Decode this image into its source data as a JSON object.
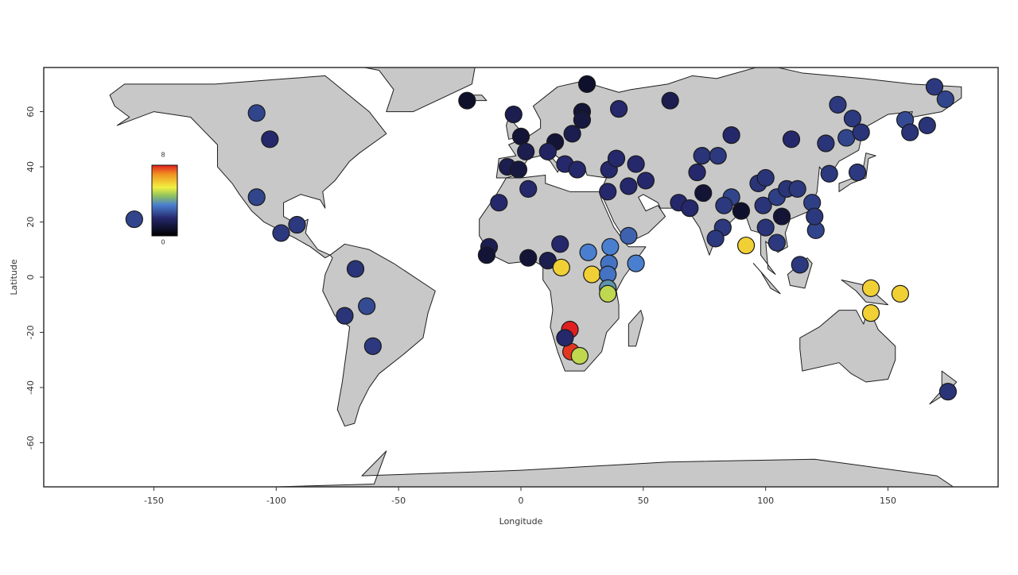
{
  "chart_data": {
    "type": "scatter",
    "x_label": "Longitude",
    "y_label": "Latitude",
    "xlim": [
      -195,
      195
    ],
    "ylim": [
      -76,
      76
    ],
    "xticks": [
      -150,
      -100,
      -50,
      0,
      50,
      100,
      150
    ],
    "yticks": [
      -60,
      -40,
      -20,
      0,
      20,
      40,
      60
    ],
    "clim": [
      0,
      8
    ],
    "colorscale": [
      {
        "value": 0,
        "color": "#000000"
      },
      {
        "value": 2,
        "color": "#25286b"
      },
      {
        "value": 3.5,
        "color": "#4a7fd0"
      },
      {
        "value": 4.5,
        "color": "#8cc060"
      },
      {
        "value": 5.5,
        "color": "#f2f040"
      },
      {
        "value": 7,
        "color": "#f09020"
      },
      {
        "value": 8,
        "color": "#e02020"
      }
    ],
    "marker_edge_color": "#1a1a1a",
    "x": [
      -158,
      -108,
      -102.6,
      -108,
      -98,
      -91.5,
      -67.6,
      -72,
      -63,
      -60.5,
      -22,
      -3,
      0,
      -5.5,
      2,
      -1,
      3,
      -9,
      27,
      25,
      25,
      40,
      61,
      14,
      21,
      11,
      18,
      23,
      36,
      39,
      47,
      44,
      51,
      35.5,
      -13,
      -14,
      3,
      11,
      16,
      16.5,
      29,
      27.5,
      36.5,
      36,
      35.5,
      35.5,
      35.5,
      44,
      47,
      20,
      20.5,
      18,
      24,
      64.5,
      69,
      74.5,
      72,
      74,
      80.5,
      86,
      83,
      82.5,
      79.5,
      90,
      92,
      86,
      97,
      100,
      99,
      104.6,
      106.6,
      100,
      104.6,
      110.5,
      108.6,
      113,
      119,
      120.5,
      114,
      126,
      124.6,
      129.5,
      133,
      135.5,
      139,
      137.5,
      157,
      159,
      166,
      169,
      173.5,
      143,
      155,
      143,
      174.5,
      120
    ],
    "values": [
      21,
      59.5,
      50,
      29,
      16,
      19,
      3,
      -14,
      -10.5,
      -25,
      64,
      59,
      51,
      40,
      45.5,
      39,
      32,
      27,
      70,
      60,
      57,
      61,
      64,
      49,
      52,
      45.5,
      41,
      39,
      39,
      43,
      41,
      33,
      35,
      31,
      11,
      8,
      7,
      6,
      12,
      3.5,
      1,
      9,
      11,
      5,
      1,
      -4,
      -6,
      15,
      5,
      -19,
      -27,
      -22,
      -28.5,
      27,
      25,
      30.5,
      38,
      44,
      44,
      29,
      26,
      18,
      14,
      24,
      11.5,
      51.5,
      34,
      36,
      26,
      29,
      22,
      18,
      12.5,
      50,
      32,
      32,
      27,
      17,
      4.5,
      37.5,
      48.5,
      62.5,
      50.5,
      57.5,
      52.5,
      38,
      57,
      52.5,
      55,
      69,
      64.5,
      -4,
      -6,
      -13,
      -41.5,
      22
    ],
    "color_values": [
      2.5,
      2.5,
      2,
      2.5,
      2.3,
      2.3,
      2.2,
      2.2,
      2.6,
      2.3,
      0.8,
      1.5,
      1,
      1.5,
      1.5,
      1.2,
      2,
      2,
      0.8,
      1,
      1.2,
      2,
      1.5,
      1,
      1.5,
      1.8,
      2,
      2,
      2,
      2,
      2,
      2,
      2,
      2,
      1.5,
      1,
      1,
      1.5,
      2,
      6,
      6,
      3.5,
      3.5,
      3.3,
      3.3,
      3.8,
      5,
      3,
      3.5,
      8,
      7.8,
      2,
      5,
      2,
      2,
      1,
      2,
      2.2,
      2.3,
      2.5,
      2.3,
      2.3,
      2.3,
      0.8,
      6,
      2,
      2.2,
      2.2,
      2.2,
      2.4,
      1,
      2.2,
      2.3,
      2,
      2.2,
      2.3,
      2.4,
      2.5,
      2.3,
      2.3,
      2.2,
      2.3,
      2.5,
      2.3,
      2.2,
      2.3,
      2.6,
      2.2,
      2.2,
      2.3,
      2.5,
      6,
      6,
      6,
      2.2,
      2.3
    ]
  }
}
